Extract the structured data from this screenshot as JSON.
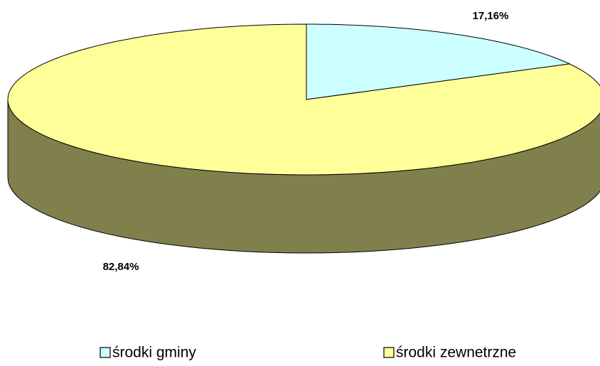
{
  "chart_data": {
    "type": "pie3d",
    "categories": [
      "środki gminy",
      "środki zewnetrzne"
    ],
    "values": [
      17.16,
      82.84
    ],
    "value_labels": [
      "17,16%",
      "82,84%"
    ],
    "colors": [
      "#ccffff",
      "#ffff99"
    ],
    "legend": "bottom"
  }
}
